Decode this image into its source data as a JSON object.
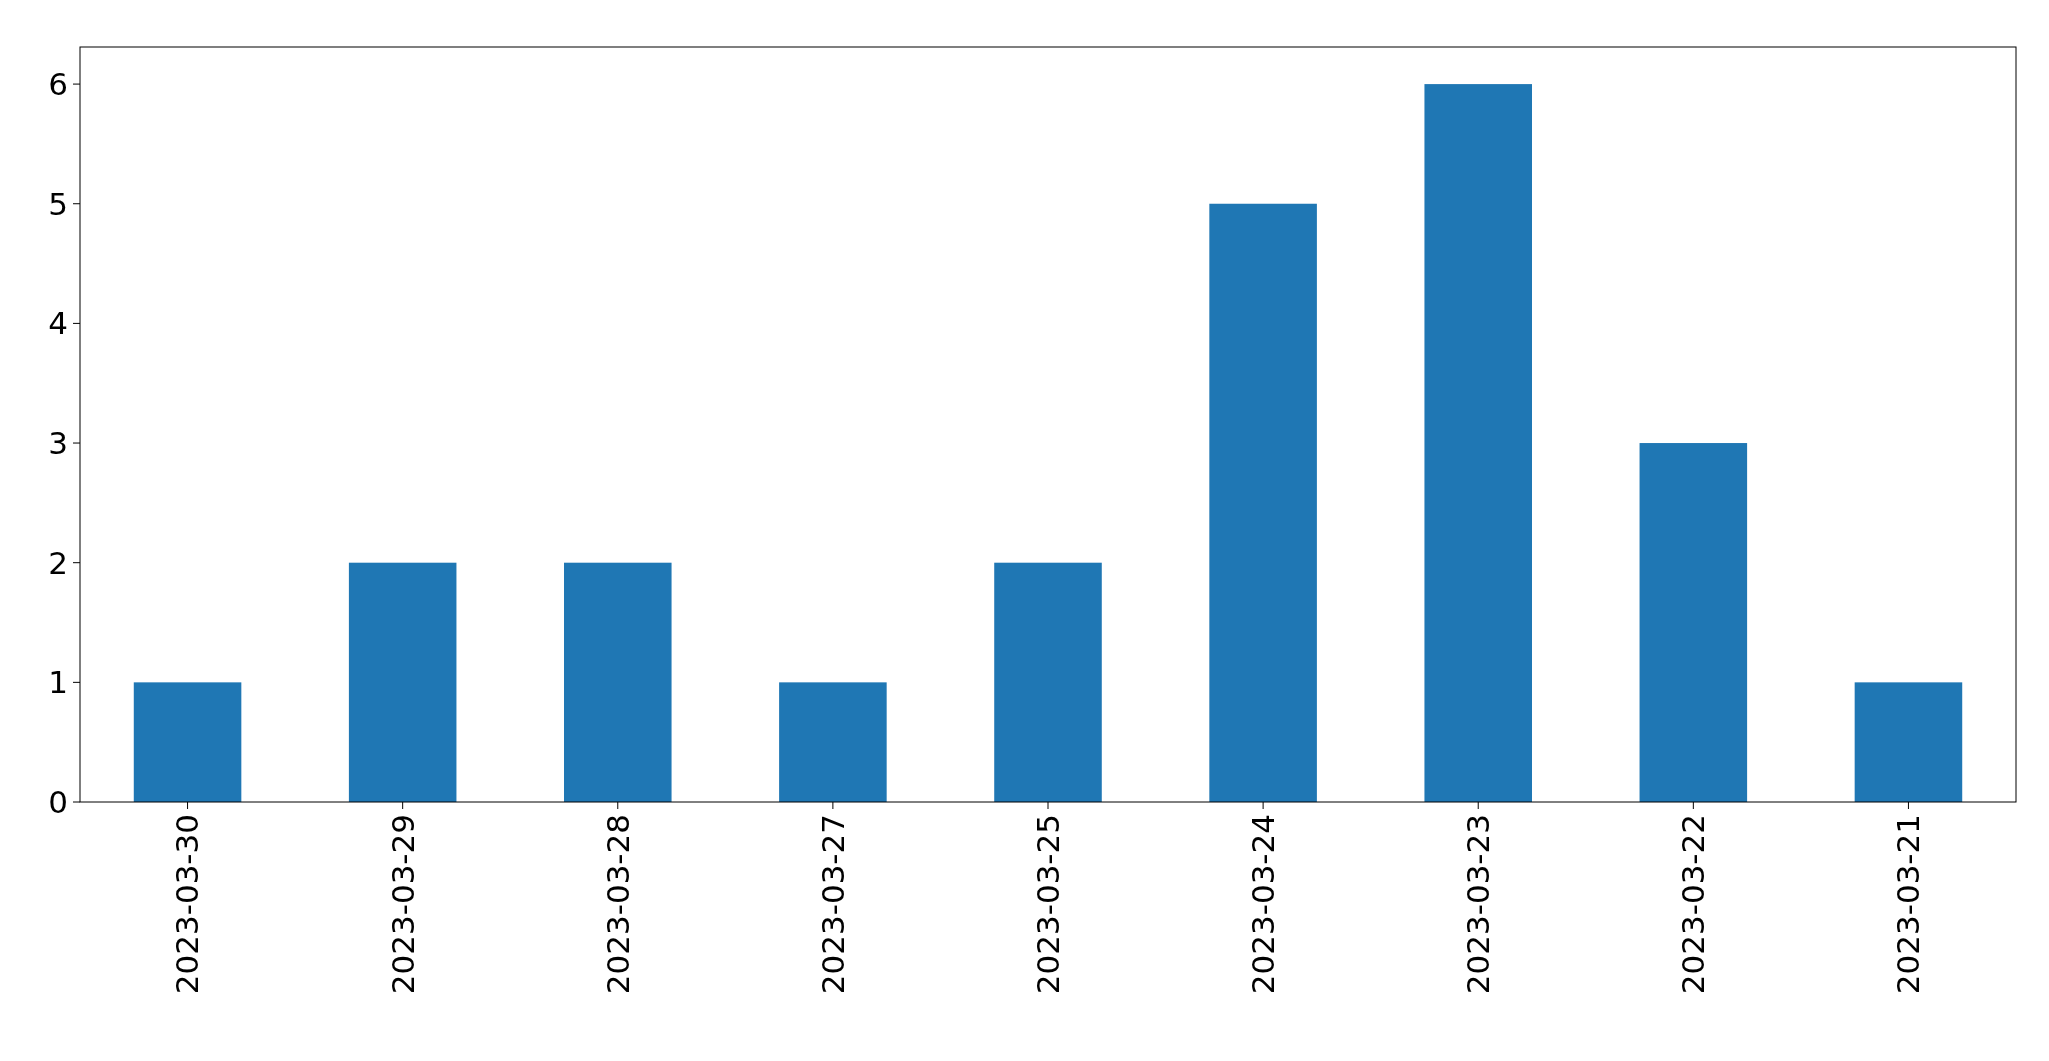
{
  "chart_data": {
    "type": "bar",
    "categories": [
      "2023-03-30",
      "2023-03-29",
      "2023-03-28",
      "2023-03-27",
      "2023-03-25",
      "2023-03-24",
      "2023-03-23",
      "2023-03-22",
      "2023-03-21"
    ],
    "values": [
      1,
      2,
      2,
      1,
      2,
      5,
      6,
      3,
      1
    ],
    "color": "#1f77b4",
    "ylim": [
      0,
      6.31
    ],
    "yticks": [
      0,
      1,
      2,
      3,
      4,
      5,
      6
    ]
  }
}
